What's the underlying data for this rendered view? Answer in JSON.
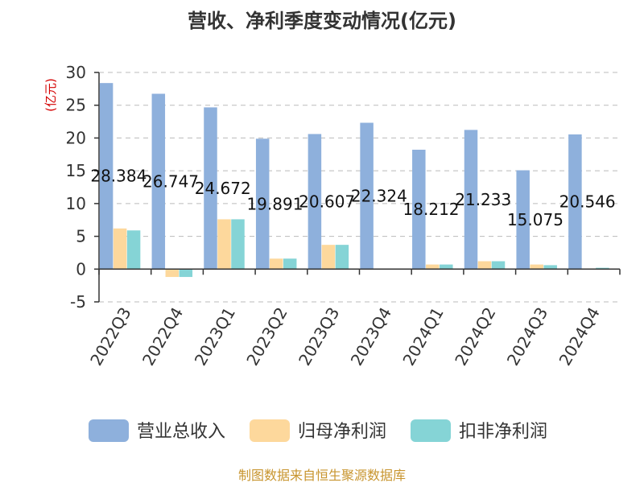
{
  "chart_data": {
    "type": "bar",
    "title": "营收、净利季度变动情况(亿元)",
    "ylabel": "(亿元)",
    "ylim": [
      -5,
      30
    ],
    "yticks": [
      -5,
      0,
      5,
      10,
      15,
      20,
      25,
      30
    ],
    "grid": true,
    "legend_position": "bottom",
    "categories": [
      "2022Q3",
      "2022Q4",
      "2023Q1",
      "2023Q2",
      "2023Q3",
      "2023Q4",
      "2024Q1",
      "2024Q2",
      "2024Q3",
      "2024Q4"
    ],
    "series": [
      {
        "name": "营业总收入",
        "color": "#8eb0dc",
        "values": [
          28.384,
          26.747,
          24.672,
          19.891,
          20.607,
          22.324,
          18.212,
          21.233,
          15.075,
          20.546
        ]
      },
      {
        "name": "归母净利润",
        "color": "#fdd89c",
        "values": [
          6.2,
          -1.2,
          7.6,
          1.6,
          3.7,
          0.05,
          0.7,
          1.2,
          0.7,
          0.1
        ]
      },
      {
        "name": "扣非净利润",
        "color": "#85d4d6",
        "values": [
          5.9,
          -1.2,
          7.6,
          1.6,
          3.7,
          0.05,
          0.7,
          1.2,
          0.6,
          0.2
        ]
      }
    ],
    "data_labels": [
      "28.384",
      "26.747",
      "24.672",
      "19.891",
      "20.607",
      "22.324",
      "18.212",
      "21.233",
      "15.075",
      "20.546"
    ]
  },
  "source": "制图数据来自恒生聚源数据库"
}
